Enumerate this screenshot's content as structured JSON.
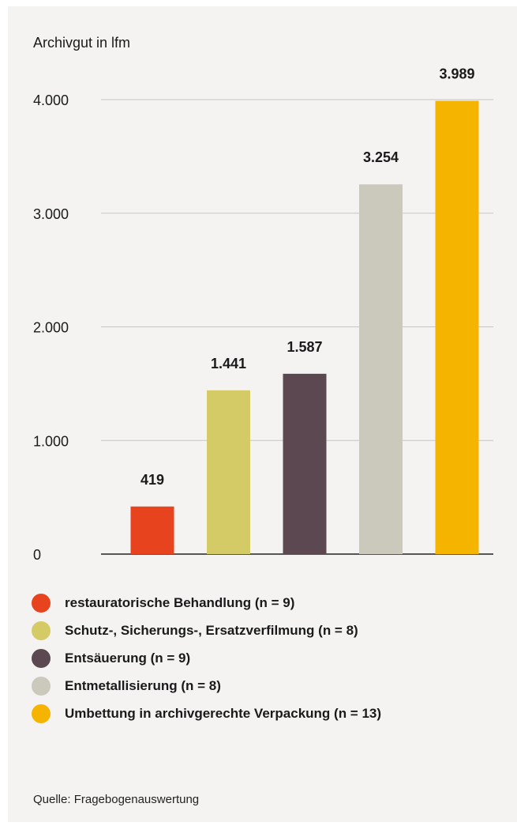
{
  "chart_data": {
    "type": "bar",
    "ylabel": "Archivgut in lfm",
    "ylim": [
      0,
      4000
    ],
    "yticks": [
      0,
      1000,
      2000,
      3000,
      4000
    ],
    "ytick_labels": [
      "0",
      "1.000",
      "2.000",
      "3.000",
      "4.000"
    ],
    "grid": true,
    "legend_position": "bottom",
    "categories": [
      "restauratorische Behandlung (n = 9)",
      "Schutz-, Sicherungs-, Ersatzverfilmung (n = 8)",
      "Entsäuerung (n = 9)",
      "Entmetallisierung (n = 8)",
      "Umbettung in archivgerechte Verpackung (n = 13)"
    ],
    "values": [
      419,
      1441,
      1587,
      3254,
      3989
    ],
    "value_labels": [
      "419",
      "1.441",
      "1.587",
      "3.254",
      "3.989"
    ],
    "colors": [
      "#e8431f",
      "#d4cb66",
      "#5c4851",
      "#cbc9bc",
      "#f5b400"
    ]
  },
  "source": "Quelle: Fragebogenauswertung"
}
